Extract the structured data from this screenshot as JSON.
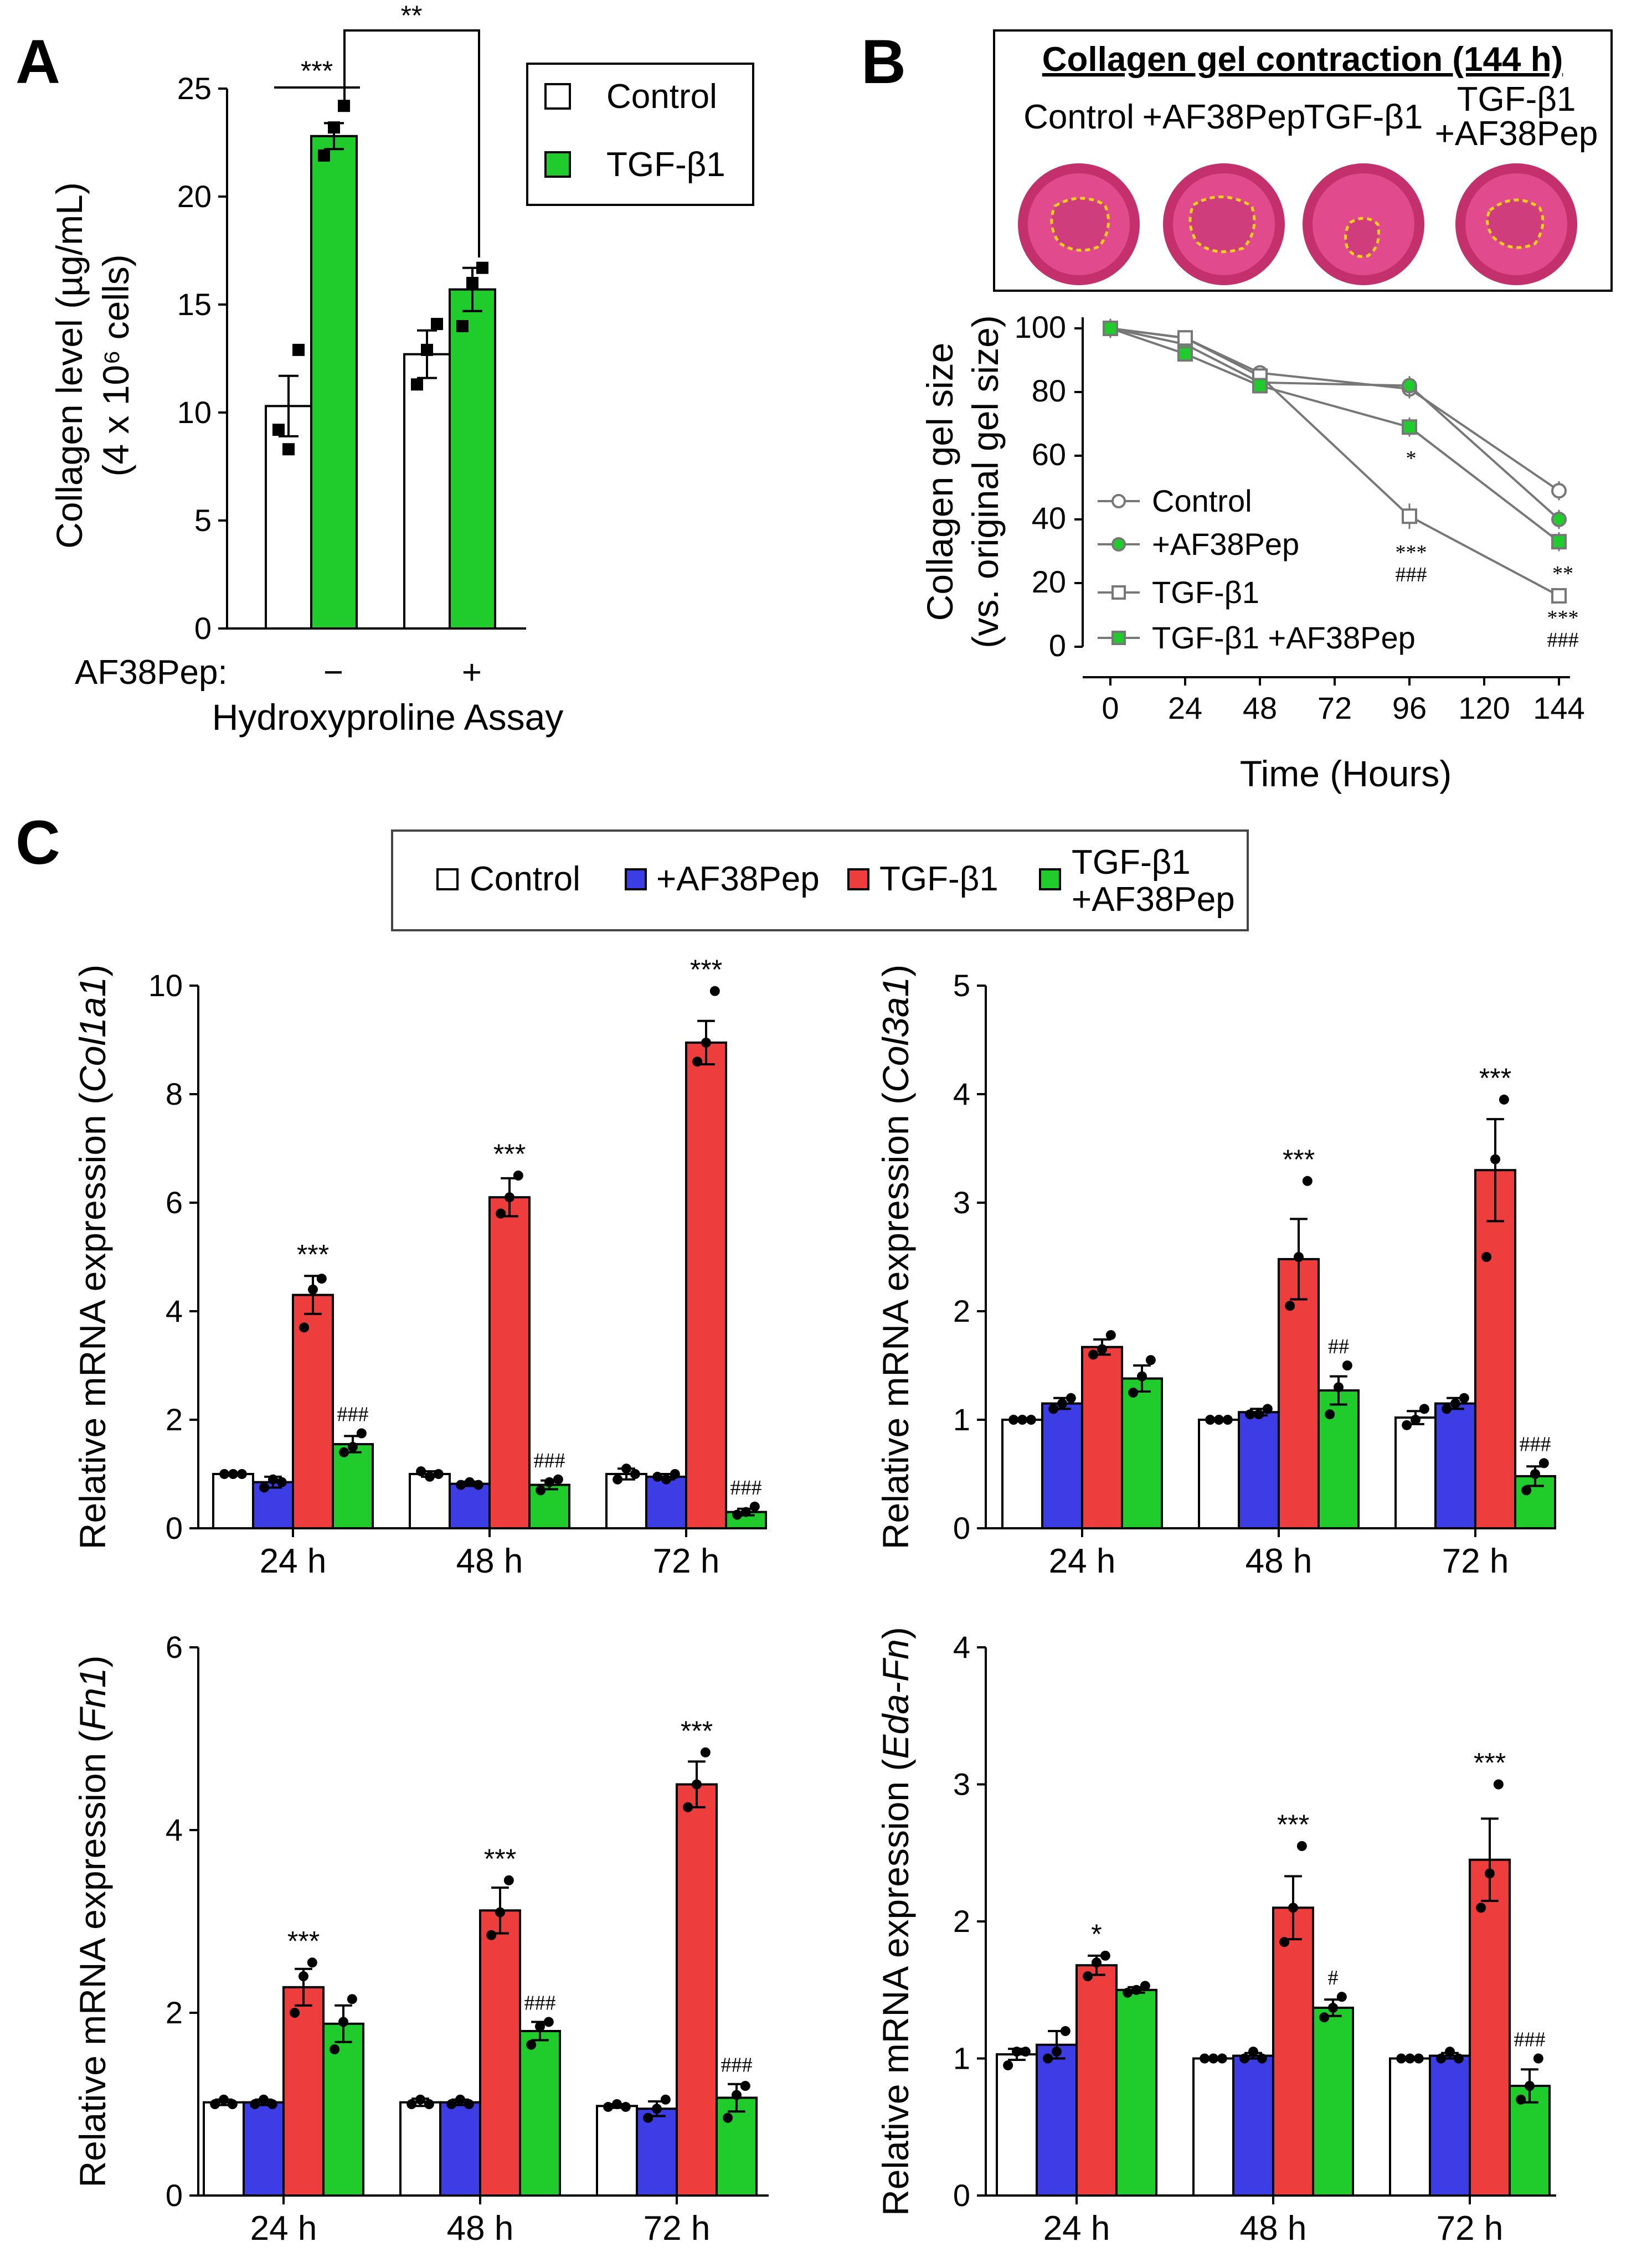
{
  "panels": {
    "A": {
      "letter": "A",
      "ylabel_line1": "Collagen level (µg/mL)",
      "ylabel_line2": "(4 x 10⁶ cells)",
      "xlabel": "Hydroxyproline Assay",
      "treatment_label": "AF38Pep:",
      "treatment_minus": "−",
      "treatment_plus": "+",
      "sig_low": "***",
      "sig_high": "**",
      "legend": [
        {
          "label": "Control",
          "color": "#ffffff"
        },
        {
          "label": "TGF-β1",
          "color": "#1fcc2b"
        }
      ]
    },
    "B": {
      "letter": "B",
      "photo_title": "Collagen gel contraction (144 h)",
      "photo_labels": [
        "Control",
        "+AF38Pep",
        "TGF-β1",
        "TGF-β1",
        "+AF38Pep"
      ],
      "ylabel_line1": "Collagen gel size",
      "ylabel_line2": "(vs. original gel size)",
      "xlabel": "Time (Hours)",
      "legend": [
        "Control",
        "+AF38Pep",
        "TGF-β1",
        "TGF-β1 +AF38Pep"
      ],
      "annotations": [
        "*",
        "***",
        "###",
        "**",
        "***",
        "###"
      ]
    },
    "C": {
      "letter": "C",
      "legend": [
        {
          "label": "Control",
          "color": "#ffffff"
        },
        {
          "label": "+AF38Pep",
          "color": "#3d3de6"
        },
        {
          "label": "TGF-β1",
          "color": "#ee3d3d"
        },
        {
          "label": "TGF-β1",
          "label2": "+AF38Pep",
          "color": "#1fcc2b"
        }
      ],
      "sub_ylabel_prefix": "Relative mRNA expression (",
      "sub_ylabel_suffix": ")"
    }
  },
  "chart_data": [
    {
      "id": "A",
      "type": "bar",
      "title": "Hydroxyproline Assay",
      "ylabel": "Collagen level (µg/mL) (4 x 10⁶ cells)",
      "ylim": [
        0,
        25
      ],
      "yticks": [
        0,
        5,
        10,
        15,
        20,
        25
      ],
      "categories": [
        "−",
        "+"
      ],
      "series": [
        {
          "name": "Control",
          "values": [
            10.3,
            12.7
          ],
          "errors": [
            1.4,
            1.1
          ],
          "points": [
            [
              9.2,
              8.3,
              12.9
            ],
            [
              11.3,
              12.9,
              14.1
            ]
          ]
        },
        {
          "name": "TGF-β1",
          "values": [
            22.8,
            15.7
          ],
          "errors": [
            0.6,
            1.0
          ],
          "points": [
            [
              21.9,
              23.2,
              24.2
            ],
            [
              14.0,
              16.0,
              16.7
            ]
          ]
        }
      ],
      "significance": [
        {
          "between": "Control − vs TGF-β1 −",
          "label": "***"
        },
        {
          "between": "TGF-β1 − vs TGF-β1 +",
          "label": "**"
        }
      ]
    },
    {
      "id": "B",
      "type": "line",
      "title": "Collagen gel contraction (144 h)",
      "xlabel": "Time (Hours)",
      "ylabel": "Collagen gel size (vs. original gel size)",
      "x": [
        0,
        24,
        48,
        96,
        144
      ],
      "xticks": [
        0,
        24,
        48,
        72,
        96,
        120,
        144
      ],
      "ylim": [
        0,
        100
      ],
      "yticks": [
        0,
        20,
        40,
        60,
        80,
        100
      ],
      "series": [
        {
          "name": "Control",
          "values": [
            100,
            97,
            86,
            81,
            49
          ],
          "errors": [
            3,
            2,
            2,
            3,
            3
          ]
        },
        {
          "name": "+AF38Pep",
          "values": [
            100,
            95,
            83,
            82,
            40
          ],
          "errors": [
            3,
            2,
            2,
            3,
            3
          ]
        },
        {
          "name": "TGF-β1",
          "values": [
            100,
            97,
            85,
            41,
            16
          ],
          "errors": [
            3,
            2,
            2,
            4,
            2
          ]
        },
        {
          "name": "TGF-β1 +AF38Pep",
          "values": [
            100,
            92,
            82,
            69,
            33
          ],
          "errors": [
            3,
            2,
            2,
            3,
            3
          ]
        }
      ],
      "annotations": [
        {
          "x": 96,
          "labels": [
            "*"
          ]
        },
        {
          "x": 96,
          "labels": [
            "***",
            "###"
          ]
        },
        {
          "x": 144,
          "labels": [
            "**"
          ]
        },
        {
          "x": 144,
          "labels": [
            "***",
            "###"
          ]
        }
      ]
    },
    {
      "id": "C1",
      "type": "bar",
      "gene": "Col1a1",
      "ylabel": "Relative mRNA expression (Col1a1)",
      "ylim": [
        0,
        10
      ],
      "yticks": [
        0,
        2,
        4,
        6,
        8,
        10
      ],
      "categories": [
        "24 h",
        "48 h",
        "72 h"
      ],
      "series": [
        {
          "name": "Control",
          "values": [
            1.0,
            1.0,
            1.0
          ],
          "errors": [
            0.02,
            0.05,
            0.1
          ],
          "points": [
            [
              1.0,
              1.0,
              1.0
            ],
            [
              1.05,
              0.95,
              1.0
            ],
            [
              0.9,
              1.1,
              1.0
            ]
          ]
        },
        {
          "name": "+AF38Pep",
          "values": [
            0.85,
            0.82,
            0.95
          ],
          "errors": [
            0.1,
            0.04,
            0.05
          ],
          "points": [
            [
              0.75,
              0.9,
              0.85
            ],
            [
              0.8,
              0.85,
              0.8
            ],
            [
              0.95,
              0.9,
              1.0
            ]
          ]
        },
        {
          "name": "TGF-β1",
          "values": [
            4.3,
            6.1,
            8.95
          ],
          "errors": [
            0.35,
            0.35,
            0.4
          ],
          "points": [
            [
              3.7,
              4.4,
              4.6
            ],
            [
              5.8,
              6.1,
              6.5
            ],
            [
              8.6,
              8.95,
              9.9
            ]
          ]
        },
        {
          "name": "TGF-β1 +AF38Pep",
          "values": [
            1.55,
            0.8,
            0.3
          ],
          "errors": [
            0.15,
            0.08,
            0.06
          ],
          "points": [
            [
              1.4,
              1.5,
              1.75
            ],
            [
              0.7,
              0.85,
              0.9
            ],
            [
              0.25,
              0.3,
              0.4
            ]
          ]
        }
      ],
      "significance": [
        {
          "category": "24 h",
          "series": "TGF-β1",
          "label": "***"
        },
        {
          "category": "24 h",
          "series": "TGF-β1 +AF38Pep",
          "label": "###"
        },
        {
          "category": "48 h",
          "series": "TGF-β1",
          "label": "***"
        },
        {
          "category": "48 h",
          "series": "TGF-β1 +AF38Pep",
          "label": "###"
        },
        {
          "category": "72 h",
          "series": "TGF-β1",
          "label": "***"
        },
        {
          "category": "72 h",
          "series": "TGF-β1 +AF38Pep",
          "label": "###"
        }
      ]
    },
    {
      "id": "C2",
      "type": "bar",
      "gene": "Col3a1",
      "ylabel": "Relative mRNA expression (Col3a1)",
      "ylim": [
        0,
        5
      ],
      "yticks": [
        0,
        1,
        2,
        3,
        4,
        5
      ],
      "categories": [
        "24 h",
        "48 h",
        "72 h"
      ],
      "series": [
        {
          "name": "Control",
          "values": [
            1.0,
            1.0,
            1.02
          ],
          "errors": [
            0.01,
            0.01,
            0.06
          ],
          "points": [
            [
              1.0,
              1.0,
              1.0
            ],
            [
              1.0,
              1.0,
              1.0
            ],
            [
              0.95,
              1.0,
              1.1
            ]
          ]
        },
        {
          "name": "+AF38Pep",
          "values": [
            1.15,
            1.07,
            1.15
          ],
          "errors": [
            0.05,
            0.03,
            0.05
          ],
          "points": [
            [
              1.1,
              1.15,
              1.2
            ],
            [
              1.05,
              1.05,
              1.1
            ],
            [
              1.1,
              1.15,
              1.2
            ]
          ]
        },
        {
          "name": "TGF-β1",
          "values": [
            1.67,
            2.48,
            3.3
          ],
          "errors": [
            0.07,
            0.37,
            0.47
          ],
          "points": [
            [
              1.6,
              1.65,
              1.78
            ],
            [
              2.05,
              2.5,
              3.2
            ],
            [
              2.5,
              3.4,
              3.95
            ]
          ]
        },
        {
          "name": "TGF-β1 +AF38Pep",
          "values": [
            1.38,
            1.27,
            0.48
          ],
          "errors": [
            0.12,
            0.13,
            0.09
          ],
          "points": [
            [
              1.25,
              1.4,
              1.55
            ],
            [
              1.05,
              1.3,
              1.5
            ],
            [
              0.35,
              0.5,
              0.6
            ]
          ]
        }
      ],
      "significance": [
        {
          "category": "48 h",
          "series": "TGF-β1",
          "label": "***"
        },
        {
          "category": "48 h",
          "series": "TGF-β1 +AF38Pep",
          "label": "##"
        },
        {
          "category": "72 h",
          "series": "TGF-β1",
          "label": "***"
        },
        {
          "category": "72 h",
          "series": "TGF-β1 +AF38Pep",
          "label": "###"
        }
      ]
    },
    {
      "id": "C3",
      "type": "bar",
      "gene": "Fn1",
      "ylabel": "Relative mRNA expression (Fn1)",
      "ylim": [
        0,
        6
      ],
      "yticks": [
        0,
        2,
        4,
        6
      ],
      "categories": [
        "24 h",
        "48 h",
        "72 h"
      ],
      "series": [
        {
          "name": "Control",
          "values": [
            1.02,
            1.02,
            0.98
          ],
          "errors": [
            0.03,
            0.04,
            0.02
          ],
          "points": [
            [
              1.0,
              1.05,
              1.0
            ],
            [
              1.0,
              1.05,
              1.0
            ],
            [
              0.97,
              1.0,
              0.97
            ]
          ]
        },
        {
          "name": "+AF38Pep",
          "values": [
            1.02,
            1.02,
            0.95
          ],
          "errors": [
            0.03,
            0.03,
            0.08
          ],
          "points": [
            [
              1.0,
              1.05,
              1.0
            ],
            [
              1.0,
              1.05,
              1.0
            ],
            [
              0.85,
              0.95,
              1.05
            ]
          ]
        },
        {
          "name": "TGF-β1",
          "values": [
            2.28,
            3.12,
            4.5
          ],
          "errors": [
            0.2,
            0.25,
            0.25
          ],
          "points": [
            [
              2.0,
              2.4,
              2.55
            ],
            [
              2.85,
              3.1,
              3.45
            ],
            [
              4.25,
              4.5,
              4.85
            ]
          ]
        },
        {
          "name": "TGF-β1 +AF38Pep",
          "values": [
            1.88,
            1.8,
            1.07
          ],
          "errors": [
            0.2,
            0.1,
            0.15
          ],
          "points": [
            [
              1.6,
              1.9,
              2.15
            ],
            [
              1.65,
              1.85,
              1.9
            ],
            [
              0.85,
              1.1,
              1.2
            ]
          ]
        }
      ],
      "significance": [
        {
          "category": "24 h",
          "series": "TGF-β1",
          "label": "***"
        },
        {
          "category": "48 h",
          "series": "TGF-β1",
          "label": "***"
        },
        {
          "category": "48 h",
          "series": "TGF-β1 +AF38Pep",
          "label": "###"
        },
        {
          "category": "72 h",
          "series": "TGF-β1",
          "label": "***"
        },
        {
          "category": "72 h",
          "series": "TGF-β1 +AF38Pep",
          "label": "###"
        }
      ]
    },
    {
      "id": "C4",
      "type": "bar",
      "gene": "Eda-Fn",
      "ylabel": "Relative mRNA expression (Eda-Fn)",
      "ylim": [
        0,
        4
      ],
      "yticks": [
        0,
        1,
        2,
        3,
        4
      ],
      "categories": [
        "24 h",
        "48 h",
        "72 h"
      ],
      "series": [
        {
          "name": "Control",
          "values": [
            1.03,
            1.0,
            1.0
          ],
          "errors": [
            0.04,
            0.01,
            0.01
          ],
          "points": [
            [
              0.95,
              1.05,
              1.05
            ],
            [
              1.0,
              1.0,
              1.0
            ],
            [
              1.0,
              1.0,
              1.0
            ]
          ]
        },
        {
          "name": "+AF38Pep",
          "values": [
            1.1,
            1.02,
            1.02
          ],
          "errors": [
            0.1,
            0.02,
            0.02
          ],
          "points": [
            [
              1.0,
              1.05,
              1.2
            ],
            [
              1.0,
              1.05,
              1.0
            ],
            [
              1.0,
              1.05,
              1.0
            ]
          ]
        },
        {
          "name": "TGF-β1",
          "values": [
            1.68,
            2.1,
            2.45
          ],
          "errors": [
            0.07,
            0.23,
            0.3
          ],
          "points": [
            [
              1.6,
              1.7,
              1.75
            ],
            [
              1.85,
              2.1,
              2.55
            ],
            [
              2.1,
              2.35,
              3.0
            ]
          ]
        },
        {
          "name": "TGF-β1 +AF38Pep",
          "values": [
            1.5,
            1.37,
            0.8
          ],
          "errors": [
            0.02,
            0.06,
            0.12
          ],
          "points": [
            [
              1.48,
              1.5,
              1.53
            ],
            [
              1.3,
              1.37,
              1.45
            ],
            [
              0.7,
              0.8,
              1.0
            ]
          ]
        }
      ],
      "significance": [
        {
          "category": "24 h",
          "series": "TGF-β1",
          "label": "*"
        },
        {
          "category": "48 h",
          "series": "TGF-β1",
          "label": "***"
        },
        {
          "category": "48 h",
          "series": "TGF-β1 +AF38Pep",
          "label": "#"
        },
        {
          "category": "72 h",
          "series": "TGF-β1",
          "label": "***"
        },
        {
          "category": "72 h",
          "series": "TGF-β1 +AF38Pep",
          "label": "###"
        }
      ]
    }
  ]
}
